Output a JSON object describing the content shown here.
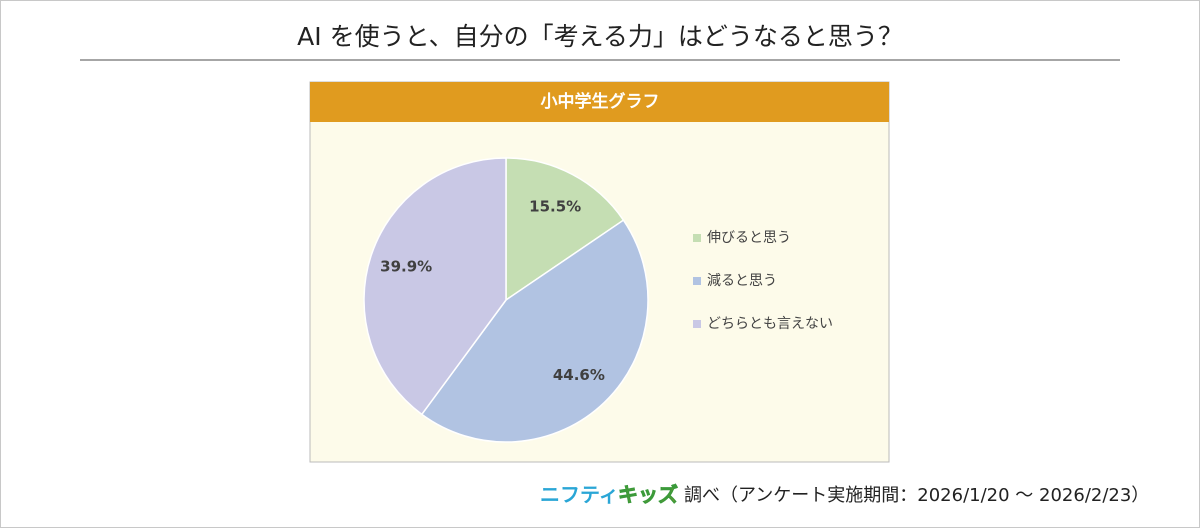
{
  "chart_data": {
    "type": "pie",
    "title": "AI を使うと、自分の「考える力」はどうなると思う？",
    "subtitle": "小中学生グラフ",
    "categories": [
      "伸びると思う",
      "減ると思う",
      "どちらとも言えない"
    ],
    "values": [
      15.5,
      44.6,
      39.9
    ],
    "value_labels": [
      "15.5%",
      "44.6%",
      "39.9%"
    ],
    "colors": [
      "#c5deb3",
      "#b1c3e2",
      "#c9c8e5"
    ],
    "legend": "right"
  },
  "source": {
    "brand_1": "ニフティ",
    "brand_2": "キッズ",
    "text": "調べ（アンケート実施期間：2026/1/20 ～ 2026/2/23）"
  }
}
